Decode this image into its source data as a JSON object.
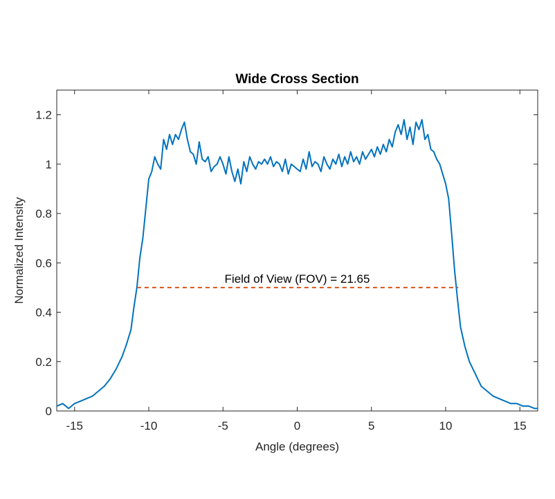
{
  "chart_data": {
    "type": "line",
    "title": "Wide Cross Section",
    "xlabel": "Angle (degrees)",
    "ylabel": "Normalized Intensity",
    "xlim": [
      -16.2,
      16.2
    ],
    "ylim": [
      0,
      1.3
    ],
    "xticks": [
      -15,
      -10,
      -5,
      0,
      5,
      10,
      15
    ],
    "yticks": [
      0,
      0.2,
      0.4,
      0.6,
      0.8,
      1,
      1.2
    ],
    "xtick_labels": [
      "-15",
      "-10",
      "-5",
      "0",
      "5",
      "10",
      "15"
    ],
    "ytick_labels": [
      "0",
      "0.2",
      "0.4",
      "0.6",
      "0.8",
      "1",
      "1.2"
    ],
    "grid": false,
    "colors": {
      "profile": "#0072BD",
      "fov": "#D95319"
    },
    "series": [
      {
        "x": [
          -16.2,
          -15.8,
          -15.4,
          -15.0,
          -14.6,
          -14.2,
          -13.8,
          -13.4,
          -13.0,
          -12.6,
          -12.2,
          -11.8,
          -11.5,
          -11.2,
          -11.0,
          -10.8,
          -10.6,
          -10.4,
          -10.2,
          -10.0,
          -9.8,
          -9.6,
          -9.4,
          -9.2,
          -9.0,
          -8.8,
          -8.6,
          -8.4,
          -8.2,
          -8.0,
          -7.8,
          -7.6,
          -7.4,
          -7.2,
          -7.0,
          -6.8,
          -6.6,
          -6.4,
          -6.2,
          -6.0,
          -5.8,
          -5.6,
          -5.4,
          -5.2,
          -5.0,
          -4.8,
          -4.6,
          -4.4,
          -4.2,
          -4.0,
          -3.8,
          -3.6,
          -3.4,
          -3.2,
          -3.0,
          -2.8,
          -2.6,
          -2.4,
          -2.2,
          -2.0,
          -1.8,
          -1.6,
          -1.4,
          -1.2,
          -1.0,
          -0.8,
          -0.6,
          -0.4,
          -0.2,
          0.0,
          0.2,
          0.4,
          0.6,
          0.8,
          1.0,
          1.2,
          1.4,
          1.6,
          1.8,
          2.0,
          2.2,
          2.4,
          2.6,
          2.8,
          3.0,
          3.2,
          3.4,
          3.6,
          3.8,
          4.0,
          4.2,
          4.4,
          4.6,
          4.8,
          5.0,
          5.2,
          5.4,
          5.6,
          5.8,
          6.0,
          6.2,
          6.4,
          6.6,
          6.8,
          7.0,
          7.2,
          7.4,
          7.6,
          7.8,
          8.0,
          8.2,
          8.4,
          8.6,
          8.8,
          9.0,
          9.2,
          9.4,
          9.6,
          9.8,
          10.0,
          10.2,
          10.4,
          10.6,
          10.8,
          11.0,
          11.3,
          11.6,
          12.0,
          12.4,
          12.8,
          13.2,
          13.6,
          14.0,
          14.4,
          14.8,
          15.2,
          15.6,
          16.0,
          16.2
        ],
        "y": [
          0.02,
          0.03,
          0.01,
          0.03,
          0.04,
          0.05,
          0.06,
          0.08,
          0.1,
          0.13,
          0.17,
          0.22,
          0.27,
          0.33,
          0.42,
          0.5,
          0.62,
          0.7,
          0.82,
          0.94,
          0.97,
          1.03,
          1.0,
          0.98,
          1.1,
          1.06,
          1.12,
          1.08,
          1.12,
          1.1,
          1.14,
          1.17,
          1.1,
          1.05,
          1.04,
          1.0,
          1.09,
          1.02,
          1.01,
          1.03,
          0.97,
          0.99,
          1.0,
          1.03,
          1.0,
          0.96,
          1.03,
          0.97,
          0.93,
          0.98,
          0.92,
          1.01,
          0.97,
          1.03,
          1.0,
          0.98,
          1.01,
          1.0,
          1.02,
          1.0,
          1.03,
          0.99,
          1.01,
          1.0,
          0.97,
          1.02,
          0.96,
          1.0,
          0.99,
          0.98,
          0.97,
          1.02,
          0.98,
          1.05,
          0.99,
          1.01,
          1.0,
          0.97,
          1.03,
          1.0,
          0.98,
          1.02,
          1.0,
          1.04,
          0.99,
          1.03,
          1.0,
          1.05,
          1.01,
          1.03,
          1.0,
          1.05,
          1.02,
          1.04,
          1.06,
          1.03,
          1.07,
          1.04,
          1.08,
          1.05,
          1.1,
          1.07,
          1.13,
          1.16,
          1.12,
          1.18,
          1.1,
          1.15,
          1.08,
          1.17,
          1.14,
          1.18,
          1.1,
          1.12,
          1.06,
          1.05,
          1.02,
          1.0,
          0.96,
          0.92,
          0.86,
          0.72,
          0.57,
          0.45,
          0.34,
          0.26,
          0.2,
          0.15,
          0.1,
          0.08,
          0.06,
          0.05,
          0.04,
          0.03,
          0.03,
          0.02,
          0.02,
          0.01,
          0.01
        ]
      },
      {
        "x": [
          -10.8,
          10.85
        ],
        "y": [
          0.5,
          0.5
        ]
      }
    ],
    "annotations": [
      {
        "text": "Field of View (FOV) = 21.65",
        "x": 0,
        "y": 0.5
      }
    ]
  }
}
